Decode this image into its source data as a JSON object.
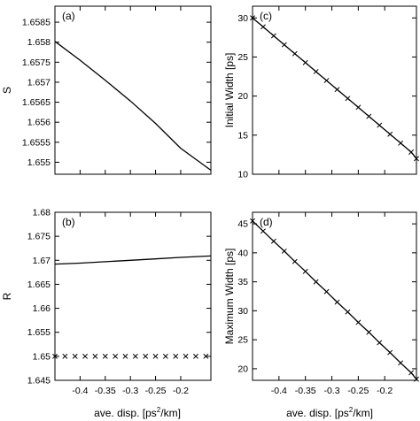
{
  "chart_data": [
    {
      "type": "line",
      "panel_label": "(a)",
      "ylabel": "S",
      "xlabel": "",
      "xlim": [
        -0.45,
        -0.14
      ],
      "ylim": [
        1.6547,
        1.6589
      ],
      "xticks": [
        -0.4,
        -0.35,
        -0.3,
        -0.25,
        -0.2
      ],
      "xtick_labels": [],
      "yticks": [
        1.655,
        1.6555,
        1.656,
        1.6565,
        1.657,
        1.6575,
        1.658,
        1.6585
      ],
      "ytick_labels": [
        "1.655",
        "1.6555",
        "1.656",
        "1.6565",
        "1.657",
        "1.6575",
        "1.658",
        "1.6585"
      ],
      "grid": false,
      "series": [
        {
          "style": "line",
          "x": [
            -0.45,
            -0.4,
            -0.35,
            -0.3,
            -0.25,
            -0.2,
            -0.14
          ],
          "y": [
            1.65802,
            1.65755,
            1.65705,
            1.65653,
            1.65597,
            1.65535,
            1.6548
          ]
        }
      ]
    },
    {
      "type": "line",
      "panel_label": "(c)",
      "ylabel": "Initial Width [ps]",
      "xlabel": "",
      "xlim": [
        -0.45,
        -0.14
      ],
      "ylim": [
        10,
        31.5
      ],
      "xticks": [
        -0.4,
        -0.35,
        -0.3,
        -0.25,
        -0.2
      ],
      "xtick_labels": [],
      "yticks": [
        10,
        15,
        20,
        25,
        30
      ],
      "ytick_labels": [
        "10",
        "15",
        "20",
        "25",
        "30"
      ],
      "grid": false,
      "series": [
        {
          "style": "line-x-markers",
          "x": [
            -0.45,
            -0.43,
            -0.41,
            -0.39,
            -0.37,
            -0.35,
            -0.33,
            -0.31,
            -0.29,
            -0.27,
            -0.25,
            -0.23,
            -0.21,
            -0.19,
            -0.17,
            -0.15,
            -0.14
          ],
          "y": [
            30.0,
            28.86,
            27.71,
            26.57,
            25.42,
            24.28,
            23.13,
            21.99,
            20.84,
            19.7,
            18.56,
            17.41,
            16.27,
            15.12,
            13.98,
            12.83,
            12.0
          ]
        }
      ]
    },
    {
      "type": "line",
      "panel_label": "(b)",
      "ylabel": "R",
      "xlabel": "",
      "xlim": [
        -0.45,
        -0.14
      ],
      "ylim": [
        1.645,
        1.68
      ],
      "xticks": [
        -0.4,
        -0.35,
        -0.3,
        -0.25,
        -0.2
      ],
      "xtick_labels": [
        "-0.4",
        "-0.35",
        "-0.3",
        "-0.25",
        "-0.2"
      ],
      "yticks": [
        1.645,
        1.65,
        1.655,
        1.66,
        1.665,
        1.67,
        1.675,
        1.68
      ],
      "ytick_labels": [
        "1.645",
        "1.65",
        "1.655",
        "1.66",
        "1.665",
        "1.67",
        "1.675",
        "1.68"
      ],
      "grid": false,
      "series": [
        {
          "style": "line",
          "x": [
            -0.45,
            -0.4,
            -0.35,
            -0.3,
            -0.25,
            -0.2,
            -0.14
          ],
          "y": [
            1.6692,
            1.6694,
            1.6697,
            1.67,
            1.6703,
            1.6706,
            1.6709
          ]
        },
        {
          "style": "x-markers",
          "x": [
            -0.45,
            -0.43,
            -0.41,
            -0.39,
            -0.37,
            -0.35,
            -0.33,
            -0.31,
            -0.29,
            -0.27,
            -0.25,
            -0.23,
            -0.21,
            -0.19,
            -0.17,
            -0.15
          ],
          "y": [
            1.65,
            1.65,
            1.65,
            1.65,
            1.65,
            1.65,
            1.65,
            1.65,
            1.65,
            1.65,
            1.65,
            1.65,
            1.65,
            1.65,
            1.65,
            1.65
          ]
        }
      ]
    },
    {
      "type": "line",
      "panel_label": "(d)",
      "ylabel": "Maximum Width [ps]",
      "xlabel": "",
      "xlim": [
        -0.45,
        -0.14
      ],
      "ylim": [
        18,
        47
      ],
      "xticks": [
        -0.4,
        -0.35,
        -0.3,
        -0.25,
        -0.2
      ],
      "xtick_labels": [
        "-0.4",
        "-0.35",
        "-0.3",
        "-0.25",
        "-0.2"
      ],
      "yticks": [
        20,
        25,
        30,
        35,
        40,
        45
      ],
      "ytick_labels": [
        "20",
        "25",
        "30",
        "35",
        "40",
        "45"
      ],
      "grid": false,
      "series": [
        {
          "style": "line-x-markers",
          "x": [
            -0.45,
            -0.43,
            -0.41,
            -0.39,
            -0.37,
            -0.35,
            -0.33,
            -0.31,
            -0.29,
            -0.27,
            -0.25,
            -0.23,
            -0.21,
            -0.19,
            -0.17,
            -0.15,
            -0.14
          ],
          "y": [
            45.5,
            43.75,
            42.0,
            40.3,
            38.5,
            36.8,
            35.0,
            33.3,
            31.5,
            29.8,
            28.0,
            26.3,
            24.5,
            22.8,
            21.0,
            19.3,
            18.2
          ]
        }
      ]
    }
  ],
  "shared_xlabel": {
    "prefix": "ave. disp. [ps",
    "superscript": "2",
    "suffix": "/km]"
  }
}
